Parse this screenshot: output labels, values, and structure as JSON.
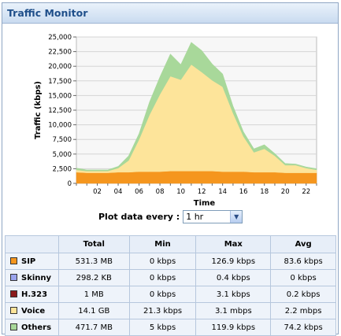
{
  "panel": {
    "title": "Traffic Monitor"
  },
  "controls": {
    "plot_label": "Plot data every :",
    "plot_value": "1 hr"
  },
  "chart_data": {
    "type": "area",
    "title": "",
    "xlabel": "Time",
    "ylabel": "Traffic (kbps)",
    "ylim": [
      0,
      25000
    ],
    "yticks": [
      "0",
      "2,500",
      "5,000",
      "7,500",
      "10,000",
      "12,500",
      "15,000",
      "17,500",
      "20,000",
      "22,500",
      "25,000"
    ],
    "xticks": [
      "02",
      "04",
      "06",
      "08",
      "10",
      "12",
      "14",
      "16",
      "18",
      "20",
      "22"
    ],
    "x": [
      0,
      1,
      2,
      3,
      4,
      5,
      6,
      7,
      8,
      9,
      10,
      11,
      12,
      13,
      14,
      15,
      16,
      17,
      18,
      19,
      20,
      21,
      22,
      23
    ],
    "series": [
      {
        "name": "SIP",
        "color": "#f5961e",
        "values": [
          1900,
          1800,
          1800,
          1800,
          1900,
          1900,
          2000,
          2000,
          2000,
          2100,
          2100,
          2100,
          2100,
          2100,
          2000,
          2000,
          2000,
          1900,
          1900,
          1900,
          1800,
          1800,
          1800,
          1800
        ]
      },
      {
        "name": "Voice",
        "color": "#fde49a",
        "values": [
          400,
          300,
          300,
          300,
          700,
          2000,
          5500,
          9700,
          13200,
          16200,
          15600,
          18200,
          16900,
          15500,
          14500,
          10000,
          6000,
          3400,
          4000,
          2800,
          1300,
          1300,
          800,
          500
        ]
      },
      {
        "name": "Others",
        "color": "#a8d89a",
        "values": [
          300,
          200,
          200,
          200,
          300,
          800,
          1000,
          2200,
          3000,
          3800,
          2600,
          3800,
          3700,
          2800,
          2200,
          1200,
          800,
          600,
          700,
          400,
          300,
          200,
          200,
          200
        ]
      }
    ]
  },
  "table": {
    "headers": [
      "",
      "Total",
      "Min",
      "Max",
      "Avg"
    ],
    "rows": [
      {
        "name": "SIP",
        "color": "#f5961e",
        "total": "531.3 MB",
        "min": "0 kbps",
        "max": "126.9 kbps",
        "avg": "83.6 kbps"
      },
      {
        "name": "Skinny",
        "color": "#9aa4ee",
        "total": "298.2 KB",
        "min": "0 kbps",
        "max": "0.4 kbps",
        "avg": "0 kbps"
      },
      {
        "name": "H.323",
        "color": "#8b1a1a",
        "total": "1 MB",
        "min": "0 kbps",
        "max": "3.1 kbps",
        "avg": "0.2 kbps"
      },
      {
        "name": "Voice",
        "color": "#fde49a",
        "total": "14.1 GB",
        "min": "21.3 kbps",
        "max": "3.1 mbps",
        "avg": "2.2 mbps"
      },
      {
        "name": "Others",
        "color": "#a8d89a",
        "total": "471.7 MB",
        "min": "5 kbps",
        "max": "119.9 kbps",
        "avg": "74.2 kbps"
      }
    ]
  }
}
